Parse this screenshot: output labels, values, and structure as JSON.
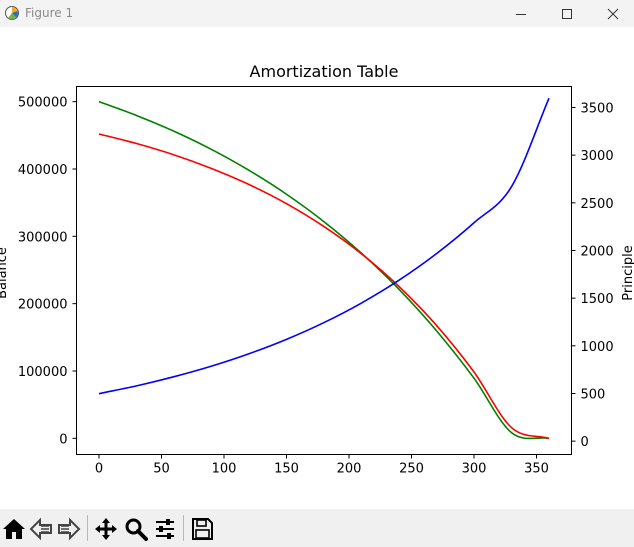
{
  "window": {
    "title": "Figure 1"
  },
  "toolbar": {
    "buttons": [
      {
        "name": "home-icon",
        "label": "Home"
      },
      {
        "name": "back-icon",
        "label": "Back"
      },
      {
        "name": "forward-icon",
        "label": "Forward"
      },
      {
        "name": "pan-icon",
        "label": "Pan"
      },
      {
        "name": "zoom-icon",
        "label": "Zoom"
      },
      {
        "name": "configure-subplots-icon",
        "label": "Subplots"
      },
      {
        "name": "save-icon",
        "label": "Save"
      }
    ]
  },
  "chart_data": {
    "type": "line",
    "title": "Amortization Table",
    "xlabel": "",
    "ylabel": "Balance",
    "y2label": "Principle",
    "xlim": [
      -18,
      378
    ],
    "ylim": [
      -24000,
      522500
    ],
    "y2lim": [
      -140,
      3720
    ],
    "xticks": [
      0,
      50,
      100,
      150,
      200,
      250,
      300,
      350
    ],
    "yticks": [
      0,
      100000,
      200000,
      300000,
      400000,
      500000
    ],
    "y2ticks": [
      0,
      500,
      1000,
      1500,
      2000,
      2500,
      3000,
      3500
    ],
    "grid": false,
    "legend": "none",
    "loan": {
      "principal": 500000,
      "monthly_rate": 0.005,
      "months": 360
    },
    "series": [
      {
        "color": "#008000",
        "axis": "left",
        "x": [
          0,
          30,
          60,
          90,
          120,
          150,
          180,
          210,
          240,
          270,
          300,
          330,
          360
        ],
        "values": [
          500000,
          479500,
          456000,
          429000,
          398000,
          362500,
          321700,
          274900,
          221300,
          159800,
          89300,
          8500,
          0
        ]
      },
      {
        "color": "#ff0000",
        "axis": "left",
        "x": [
          0,
          30,
          60,
          90,
          120,
          150,
          180,
          210,
          240,
          270,
          300,
          330,
          360
        ],
        "values": [
          452000,
          437800,
          421000,
          400800,
          377000,
          348500,
          314500,
          274000,
          225500,
          167700,
          98500,
          16000,
          0
        ]
      },
      {
        "color": "#0000ff",
        "axis": "right",
        "x": [
          0,
          30,
          60,
          90,
          120,
          150,
          180,
          210,
          240,
          270,
          300,
          330,
          360
        ],
        "values": [
          498,
          580,
          676,
          787,
          917,
          1068,
          1244,
          1449,
          1688,
          1967,
          2291,
          2669,
          3597
        ]
      }
    ]
  }
}
